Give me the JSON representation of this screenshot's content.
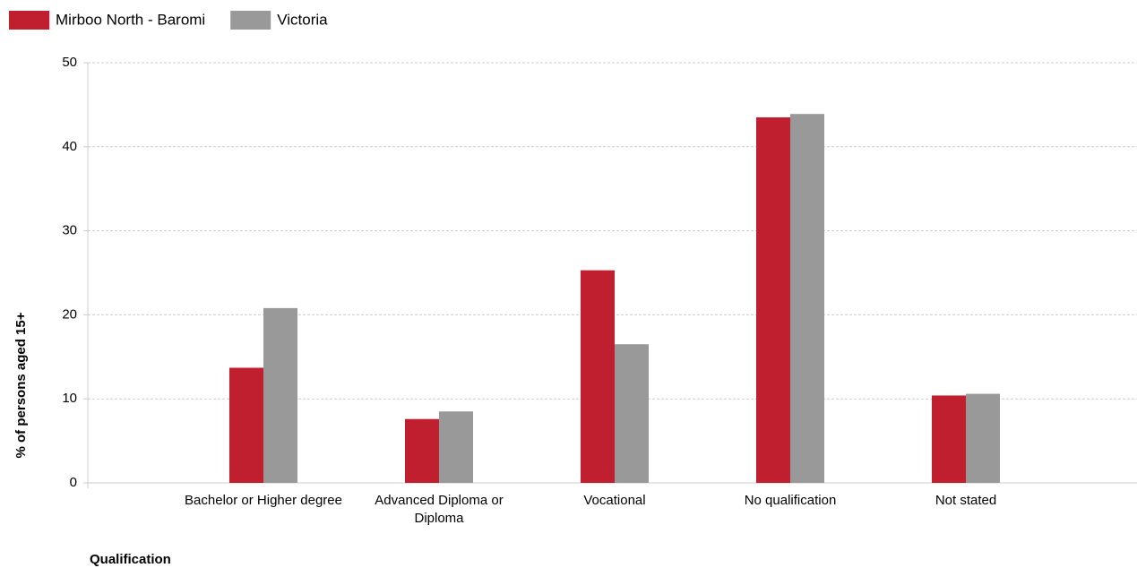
{
  "chart_data": {
    "type": "bar",
    "x_label": "Qualification",
    "y_label": "% of persons aged 15+",
    "categories": [
      "Bachelor or Higher degree",
      "Advanced Diploma or Diploma",
      "Vocational",
      "No qualification",
      "Not stated"
    ],
    "series": [
      {
        "name": "Mirboo North - Baromi",
        "color": "#c01f2f",
        "values": [
          13.7,
          7.6,
          25.3,
          43.5,
          10.4
        ]
      },
      {
        "name": "Victoria",
        "color": "#999999",
        "values": [
          20.8,
          8.5,
          16.5,
          43.9,
          10.6
        ]
      }
    ],
    "ylim": [
      0,
      50
    ],
    "yticks": [
      0,
      10,
      20,
      30,
      40,
      50
    ],
    "grid": true,
    "legend": "top-left"
  }
}
